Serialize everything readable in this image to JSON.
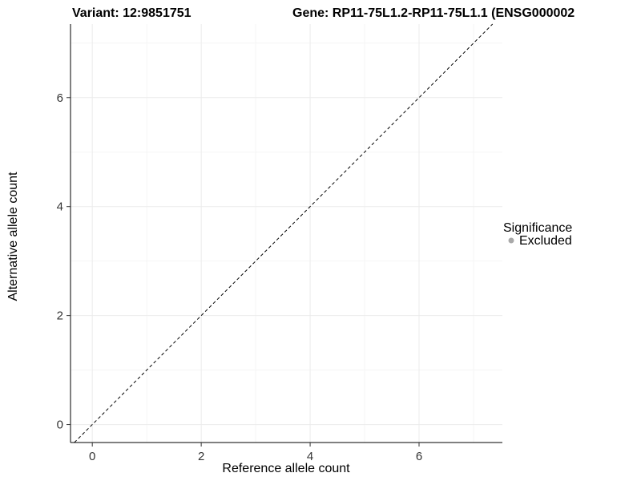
{
  "chart_data": {
    "type": "scatter",
    "titles": {
      "left": "Variant: 12:9851751",
      "right": "Gene: RP11-75L1.2-RP11-75L1.1 (ENSG000002"
    },
    "xlabel": "Reference allele count",
    "ylabel": "Alternative allele count",
    "xlim": [
      -0.4,
      7.53
    ],
    "ylim": [
      -0.33,
      7.35
    ],
    "xticks": [
      0,
      2,
      4,
      6
    ],
    "yticks": [
      0,
      2,
      4,
      6
    ],
    "grid": {
      "on": true,
      "major_color": "#ebebeb",
      "minor_color": "#f5f5f5",
      "x_minor": [
        1,
        3,
        5,
        7
      ],
      "y_minor": [
        1,
        3,
        5,
        7
      ]
    },
    "points": [],
    "reference_line": {
      "type": "identity",
      "slope": 1,
      "intercept": 0,
      "style": "dashed",
      "color": "#000000"
    },
    "legend": {
      "title": "Significance",
      "position": "right",
      "entries": [
        {
          "label": "Excluded",
          "color": "#a9a9a9",
          "marker": "circle"
        }
      ]
    },
    "axis_color": "#000000",
    "tick_label_color": "#333333"
  }
}
